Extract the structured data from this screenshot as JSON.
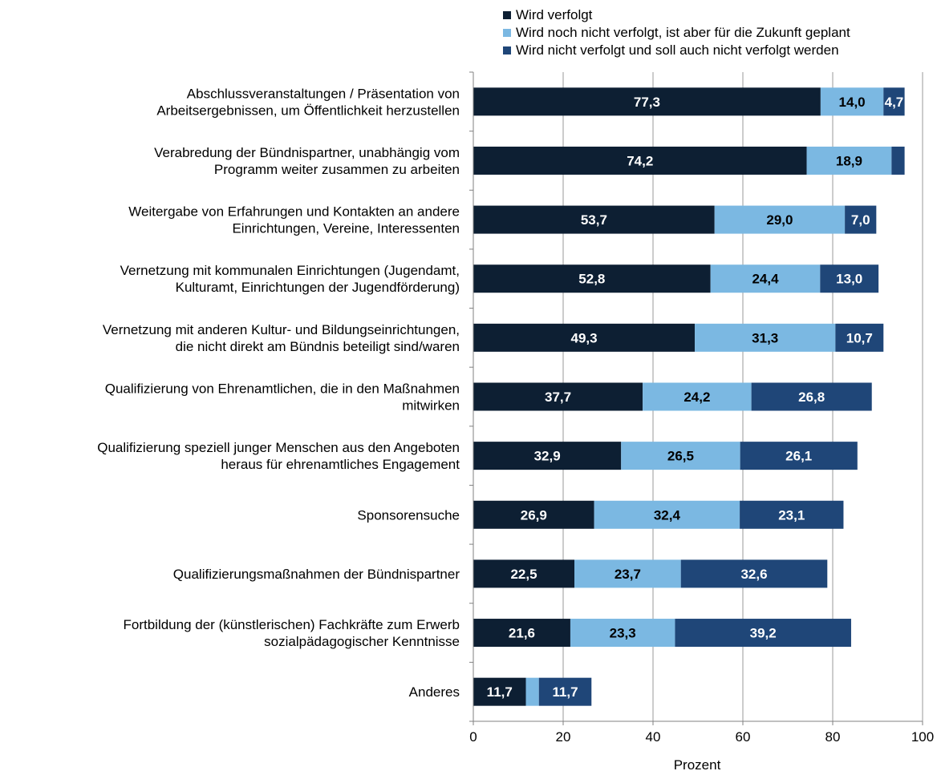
{
  "chart_data": {
    "type": "bar",
    "orientation": "horizontal",
    "stacked": true,
    "categories": [
      "Abschlussveranstaltungen / Präsentation von\nArbeitsergebnissen, um Öffentlichkeit herzustellen",
      "Verabredung der Bündnispartner, unabhängig vom\nProgramm weiter zusammen zu arbeiten",
      "Weitergabe von Erfahrungen und Kontakten an andere\nEinrichtungen, Vereine, Interessenten",
      "Vernetzung mit kommunalen Einrichtungen (Jugendamt,\nKulturamt, Einrichtungen der Jugendförderung)",
      "Vernetzung mit anderen Kultur- und Bildungseinrichtungen,\ndie nicht direkt am Bündnis beteiligt sind/waren",
      "Qualifizierung von Ehrenamtlichen, die in den Maßnahmen\nmitwirken",
      "Qualifizierung speziell junger Menschen aus den Angeboten\nheraus für ehrenamtliches Engagement",
      "Sponsorensuche",
      "Qualifizierungsmaßnahmen der Bündnispartner",
      "Fortbildung der (künstlerischen) Fachkräfte zum Erwerb\nsozialpädagogischer Kenntnisse",
      "Anderes"
    ],
    "series": [
      {
        "name": "Wird verfolgt",
        "color": "#0d1f33",
        "label_color": "#ffffff",
        "values": [
          77.3,
          74.2,
          53.7,
          52.8,
          49.3,
          37.7,
          32.9,
          26.9,
          22.5,
          21.6,
          11.7
        ],
        "labels": [
          "77,3",
          "74,2",
          "53,7",
          "52,8",
          "49,3",
          "37,7",
          "32,9",
          "26,9",
          "22,5",
          "21,6",
          "11,7"
        ]
      },
      {
        "name": "Wird noch nicht verfolgt, ist aber für die Zukunft geplant",
        "color": "#7bb8e2",
        "label_color": "#000000",
        "values": [
          14.0,
          18.9,
          29.0,
          24.4,
          31.3,
          24.2,
          26.5,
          32.4,
          23.7,
          23.3,
          2.9
        ],
        "labels": [
          "14,0",
          "18,9",
          "29,0",
          "24,4",
          "31,3",
          "24,2",
          "26,5",
          "32,4",
          "23,7",
          "23,3",
          ""
        ]
      },
      {
        "name": "Wird nicht verfolgt und soll auch nicht verfolgt werden",
        "color": "#1f4678",
        "label_color": "#ffffff",
        "values": [
          4.7,
          2.9,
          7.0,
          13.0,
          10.7,
          26.8,
          26.1,
          23.1,
          32.6,
          39.2,
          11.7
        ],
        "labels": [
          "4,7",
          "",
          "7,0",
          "13,0",
          "10,7",
          "26,8",
          "26,1",
          "23,1",
          "32,6",
          "39,2",
          "11,7"
        ]
      }
    ],
    "xlabel": "Prozent",
    "ylabel": "",
    "xlim": [
      0,
      100
    ],
    "xticks": [
      0,
      20,
      40,
      60,
      80,
      100
    ],
    "grid": "vertical",
    "legend_position": "top-right"
  }
}
